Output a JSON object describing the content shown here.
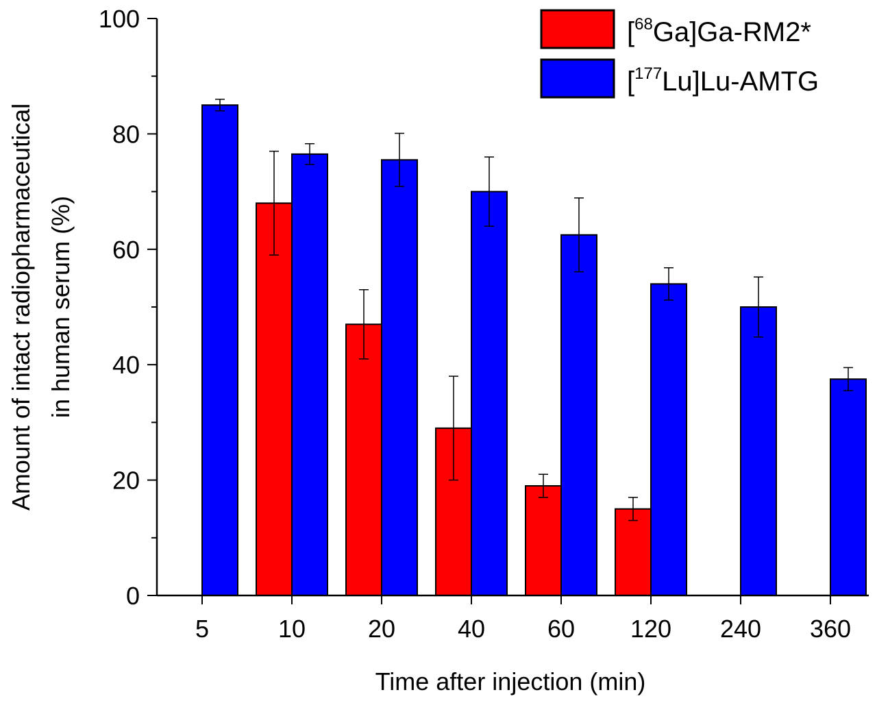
{
  "chart_data": {
    "type": "bar",
    "xlabel": "Time after injection (min)",
    "ylabel_line1": "Amount of intact radiopharmaceutical",
    "ylabel_line2": "in human serum (%)",
    "ylim": [
      0,
      100
    ],
    "yticks": [
      0,
      20,
      40,
      60,
      80,
      100
    ],
    "categories": [
      "5",
      "10",
      "20",
      "40",
      "60",
      "120",
      "240",
      "360"
    ],
    "legend_position": "top-right",
    "series": [
      {
        "name": "[68Ga]Ga-RM2*",
        "name_parts": {
          "open": "[",
          "sup": "68",
          "rest": "Ga]Ga-RM2*"
        },
        "color": "#ff0000",
        "values": [
          null,
          68,
          47,
          29,
          19,
          15,
          null,
          null
        ],
        "errors": [
          null,
          9,
          6,
          9,
          2,
          2,
          null,
          null
        ]
      },
      {
        "name": "[177Lu]Lu-AMTG",
        "name_parts": {
          "open": "[",
          "sup": "177",
          "rest": "Lu]Lu-AMTG"
        },
        "color": "#0000ff",
        "values": [
          85,
          76.5,
          75.5,
          70,
          62.5,
          54,
          50,
          37.5
        ],
        "errors": [
          1,
          1.8,
          4.6,
          6,
          6.4,
          2.8,
          5.2,
          2
        ]
      }
    ]
  }
}
